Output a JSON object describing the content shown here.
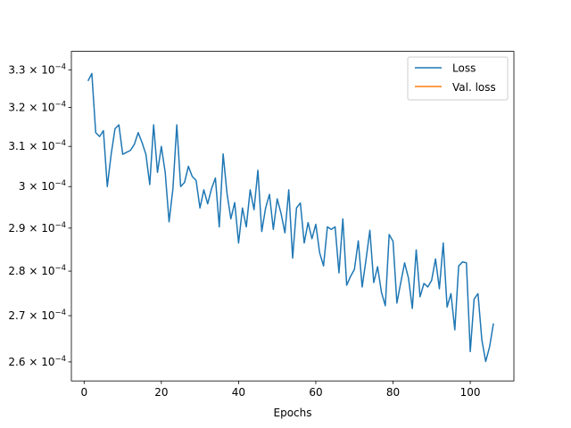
{
  "chart_data": {
    "type": "line",
    "title": "",
    "xlabel": "Epochs",
    "ylabel": "",
    "yscale": "log",
    "xlim": [
      -3.3,
      111.3
    ],
    "ylim": [
      0.000256,
      0.000335
    ],
    "xticks": [
      0,
      20,
      40,
      60,
      80,
      100
    ],
    "xtick_labels": [
      "0",
      "20",
      "40",
      "60",
      "80",
      "100"
    ],
    "yticks": [
      0.00026,
      0.00027,
      0.00028,
      0.00029,
      0.0003,
      0.00031,
      0.00032,
      0.00033
    ],
    "ytick_labels": [
      {
        "mant": "2.6",
        "exp": "−4"
      },
      {
        "mant": "2.7",
        "exp": "−4"
      },
      {
        "mant": "2.8",
        "exp": "−4"
      },
      {
        "mant": "2.9",
        "exp": "−4"
      },
      {
        "mant": "",
        "exp": "−4",
        "base": "3"
      },
      {
        "mant": "3.1",
        "exp": "−4"
      },
      {
        "mant": "3.2",
        "exp": "−4"
      },
      {
        "mant": "3.3",
        "exp": "−4"
      }
    ],
    "grid": false,
    "legend_position": "top-right",
    "series": [
      {
        "name": "Loss",
        "color": "#1f77b4",
        "x": [
          1,
          2,
          3,
          4,
          5,
          6,
          7,
          8,
          9,
          10,
          11,
          12,
          13,
          14,
          15,
          16,
          17,
          18,
          19,
          20,
          21,
          22,
          23,
          24,
          25,
          26,
          27,
          28,
          29,
          30,
          31,
          32,
          33,
          34,
          35,
          36,
          37,
          38,
          39,
          40,
          41,
          42,
          43,
          44,
          45,
          46,
          47,
          48,
          49,
          50,
          51,
          52,
          53,
          54,
          55,
          56,
          57,
          58,
          59,
          60,
          61,
          62,
          63,
          64,
          65,
          66,
          67,
          68,
          69,
          70,
          71,
          72,
          73,
          74,
          75,
          76,
          77,
          78,
          79,
          80,
          81,
          82,
          83,
          84,
          85,
          86,
          87,
          88,
          89,
          90,
          91,
          92,
          93,
          94,
          95,
          96,
          97,
          98,
          99,
          100,
          101,
          102,
          103,
          104,
          105,
          106
        ],
        "y": [
          0.000327,
          0.000329,
          0.0003135,
          0.0003125,
          0.000314,
          0.0003,
          0.000308,
          0.0003145,
          0.0003155,
          0.000308,
          0.0003085,
          0.000309,
          0.0003105,
          0.0003135,
          0.000311,
          0.000308,
          0.0003005,
          0.0003155,
          0.0003035,
          0.00031,
          0.0003035,
          0.0002915,
          0.0002995,
          0.0003155,
          0.0003,
          0.000301,
          0.000305,
          0.0003025,
          0.0003015,
          0.0002948,
          0.0002992,
          0.0002958,
          0.0002995,
          0.0003021,
          0.0002903,
          0.0003081,
          0.0002984,
          0.0002922,
          0.0002961,
          0.0002865,
          0.0002948,
          0.0002903,
          0.0002992,
          0.0002944,
          0.000304,
          0.0002892,
          0.0002948,
          0.0002981,
          0.0002897,
          0.000297,
          0.0002935,
          0.0002889,
          0.0002992,
          0.000283,
          0.0002948,
          0.000296,
          0.0002865,
          0.0002913,
          0.0002875,
          0.0002909,
          0.0002842,
          0.0002812,
          0.0002903,
          0.0002897,
          0.0002903,
          0.0002796,
          0.0002922,
          0.0002768,
          0.0002788,
          0.0002804,
          0.000287,
          0.0002764,
          0.0002826,
          0.0002895,
          0.0002774,
          0.000281,
          0.0002752,
          0.0002722,
          0.0002885,
          0.0002869,
          0.0002728,
          0.0002774,
          0.0002819,
          0.0002784,
          0.0002716,
          0.0002849,
          0.0002742,
          0.0002772,
          0.0002764,
          0.0002779,
          0.0002828,
          0.000276,
          0.0002865,
          0.0002719,
          0.0002749,
          0.0002669,
          0.0002812,
          0.0002821,
          0.0002819,
          0.0002622,
          0.0002737,
          0.0002749,
          0.0002647,
          0.0002601,
          0.0002632,
          0.0002683
        ]
      },
      {
        "name": "Val. loss",
        "color": "#ff7f0e",
        "x": [],
        "y": []
      }
    ]
  }
}
